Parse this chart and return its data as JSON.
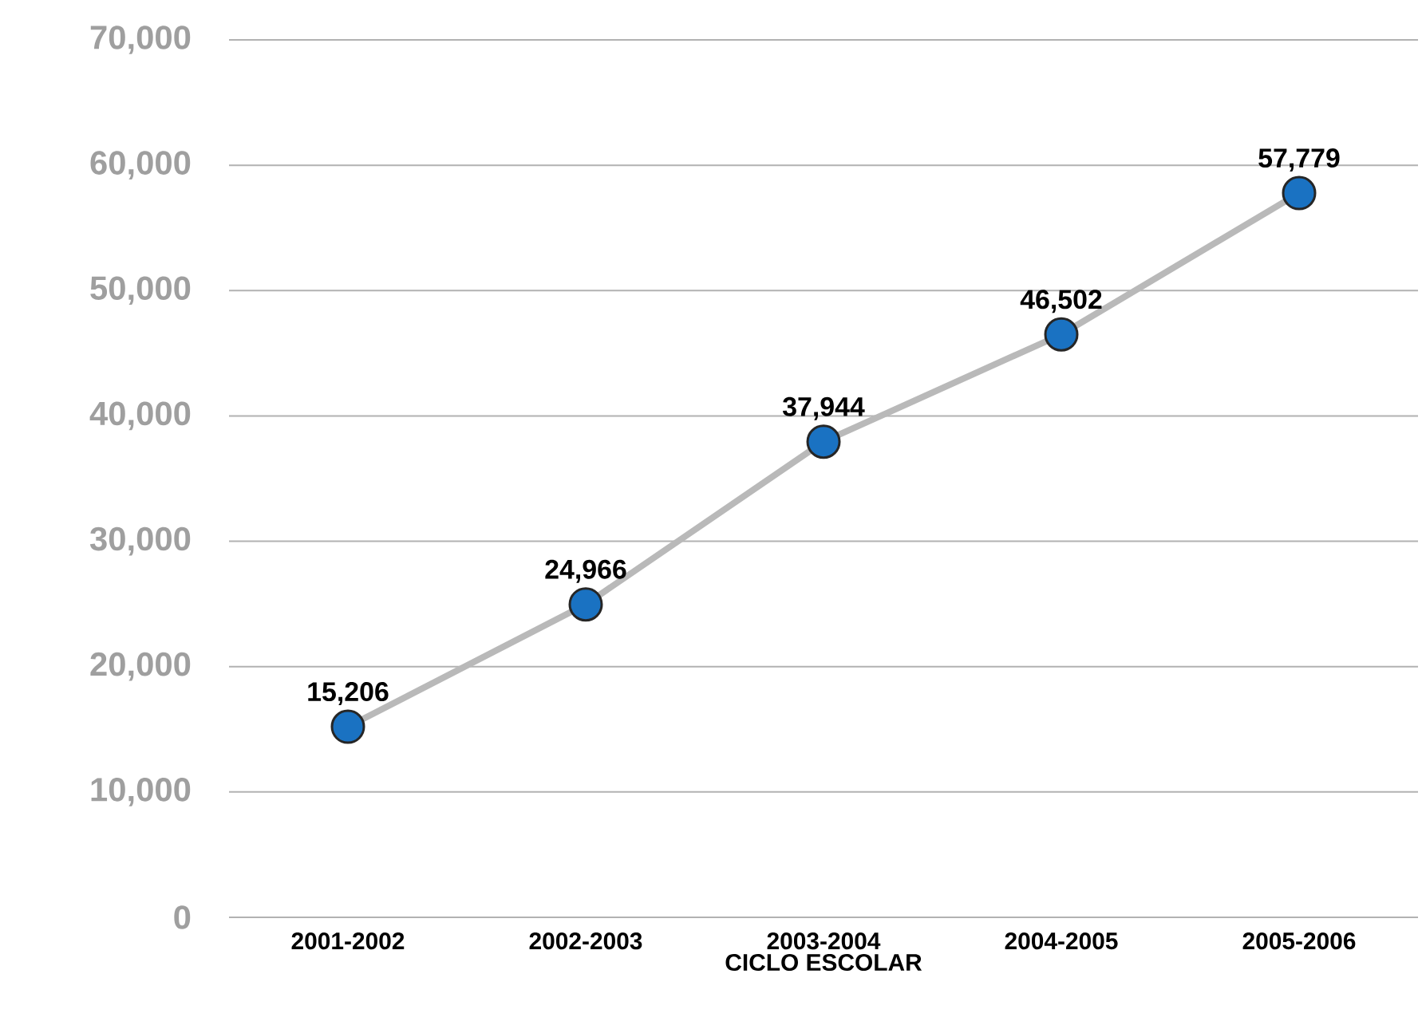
{
  "chart_data": {
    "type": "line",
    "xlabel": "CICLO ESCOLAR",
    "categories": [
      "2001-2002",
      "2002-2003",
      "2003-2004",
      "2004-2005",
      "2005-2006"
    ],
    "values": [
      15206,
      24966,
      37944,
      46502,
      57779
    ],
    "value_labels": [
      "15,206",
      "24,966",
      "37,944",
      "46,502",
      "57,779"
    ],
    "color": "#1a72c2",
    "marker": "circle",
    "grid": "y",
    "ylim": [
      0,
      70000
    ],
    "yticks": [
      0,
      {
        "value": 10000,
        "label": "10,000"
      },
      {
        "value": 20000,
        "label": "20,000"
      },
      {
        "value": 30000,
        "label": "30,000"
      },
      {
        "value": 40000,
        "label": "40,000"
      },
      {
        "value": 50000,
        "label": "50,000"
      },
      {
        "value": 60000,
        "label": "60,000"
      },
      {
        "value": 70000,
        "label": "70,000"
      }
    ]
  }
}
